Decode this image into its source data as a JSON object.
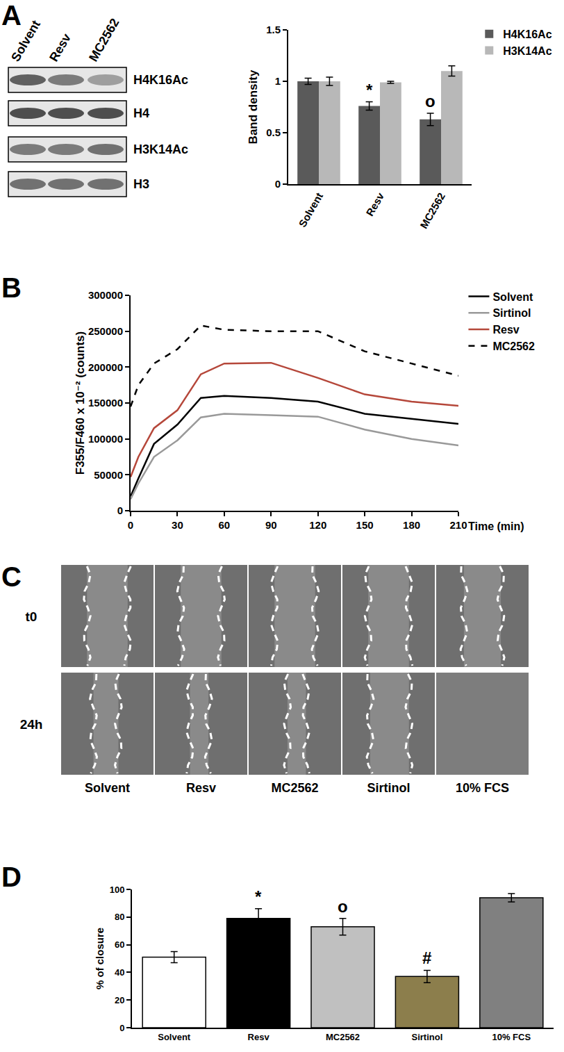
{
  "panel_labels": [
    "A",
    "B",
    "C",
    "D"
  ],
  "blot": {
    "lanes": [
      "Solvent",
      "Resv",
      "MC2562"
    ],
    "rows": [
      "H4K16Ac",
      "H4",
      "H3K14Ac",
      "H3"
    ]
  },
  "scratch": {
    "rows": [
      "t0",
      "24h"
    ],
    "columns": [
      "Solvent",
      "Resv",
      "MC2562",
      "Sirtinol",
      "10% FCS"
    ]
  },
  "chart_data": [
    {
      "type": "bar",
      "y_label": "Band density",
      "categories": [
        "Solvent",
        "Resv",
        "MC2562"
      ],
      "series": [
        {
          "name": "H4K16Ac",
          "color": "#5a5a5a",
          "values": [
            1,
            0.76,
            0.63
          ],
          "error": [
            0.03,
            0.04,
            0.06
          ]
        },
        {
          "name": "H3K14Ac",
          "color": "#b8b8b8",
          "values": [
            1,
            0.99,
            1.1
          ],
          "error": [
            0.04,
            0.01,
            0.05
          ]
        }
      ],
      "ylim": [
        0,
        1.5
      ],
      "yticks": [
        0,
        0.5,
        1,
        1.5
      ],
      "grid": false,
      "legend": "top right",
      "annotations": [
        {
          "text": "*",
          "category": "Resv",
          "series": "H4K16Ac"
        },
        {
          "text": "o",
          "category": "MC2562",
          "series": "H4K16Ac"
        }
      ]
    },
    {
      "type": "line",
      "y_label": "F355/F460 x 10⁻² (counts)",
      "x_label": "Time (min)",
      "x": [
        0,
        5,
        15,
        30,
        45,
        60,
        90,
        120,
        150,
        180,
        210
      ],
      "series": [
        {
          "name": "Solvent",
          "color": "#000000",
          "line_style": "solid",
          "values": [
            20000,
            45000,
            93000,
            120000,
            157000,
            160000,
            157000,
            152000,
            135000,
            128000,
            121000
          ]
        },
        {
          "name": "Sirtinol",
          "color": "#999999",
          "line_style": "solid",
          "values": [
            16000,
            38000,
            75000,
            98000,
            130000,
            135000,
            133000,
            131000,
            113000,
            100000,
            91000
          ]
        },
        {
          "name": "Resv",
          "color": "#b5473a",
          "line_style": "solid",
          "values": [
            47000,
            75000,
            115000,
            140000,
            190000,
            205000,
            206000,
            185000,
            162000,
            152000,
            146000
          ]
        },
        {
          "name": "MC2562",
          "color": "#000000",
          "line_style": "dash",
          "values": [
            145000,
            175000,
            205000,
            225000,
            258000,
            252000,
            250000,
            250000,
            222000,
            205000,
            188000
          ]
        }
      ],
      "xlim": [
        0,
        210
      ],
      "xticks": [
        0,
        30,
        60,
        90,
        120,
        150,
        180,
        210
      ],
      "ylim": [
        0,
        300000
      ],
      "yticks": [
        0,
        50000,
        100000,
        150000,
        200000,
        250000,
        300000
      ],
      "grid": false,
      "legend": "top right"
    },
    {
      "type": "bar",
      "y_label": "% of closure",
      "categories": [
        "Solvent",
        "Resv",
        "MC2562",
        "Sirtinol",
        "10% FCS"
      ],
      "values": [
        51,
        79,
        73,
        37,
        94
      ],
      "error": [
        4,
        7,
        6,
        4.5,
        3
      ],
      "colors": [
        "#ffffff",
        "#000000",
        "#c0c0c0",
        "#8c7e4c",
        "#808080"
      ],
      "ylim": [
        0,
        100
      ],
      "yticks": [
        0,
        20,
        40,
        60,
        80,
        100
      ],
      "grid": false,
      "annotations": [
        {
          "text": "*",
          "category": "Resv"
        },
        {
          "text": "o",
          "category": "MC2562"
        },
        {
          "text": "#",
          "category": "Sirtinol"
        }
      ]
    }
  ]
}
